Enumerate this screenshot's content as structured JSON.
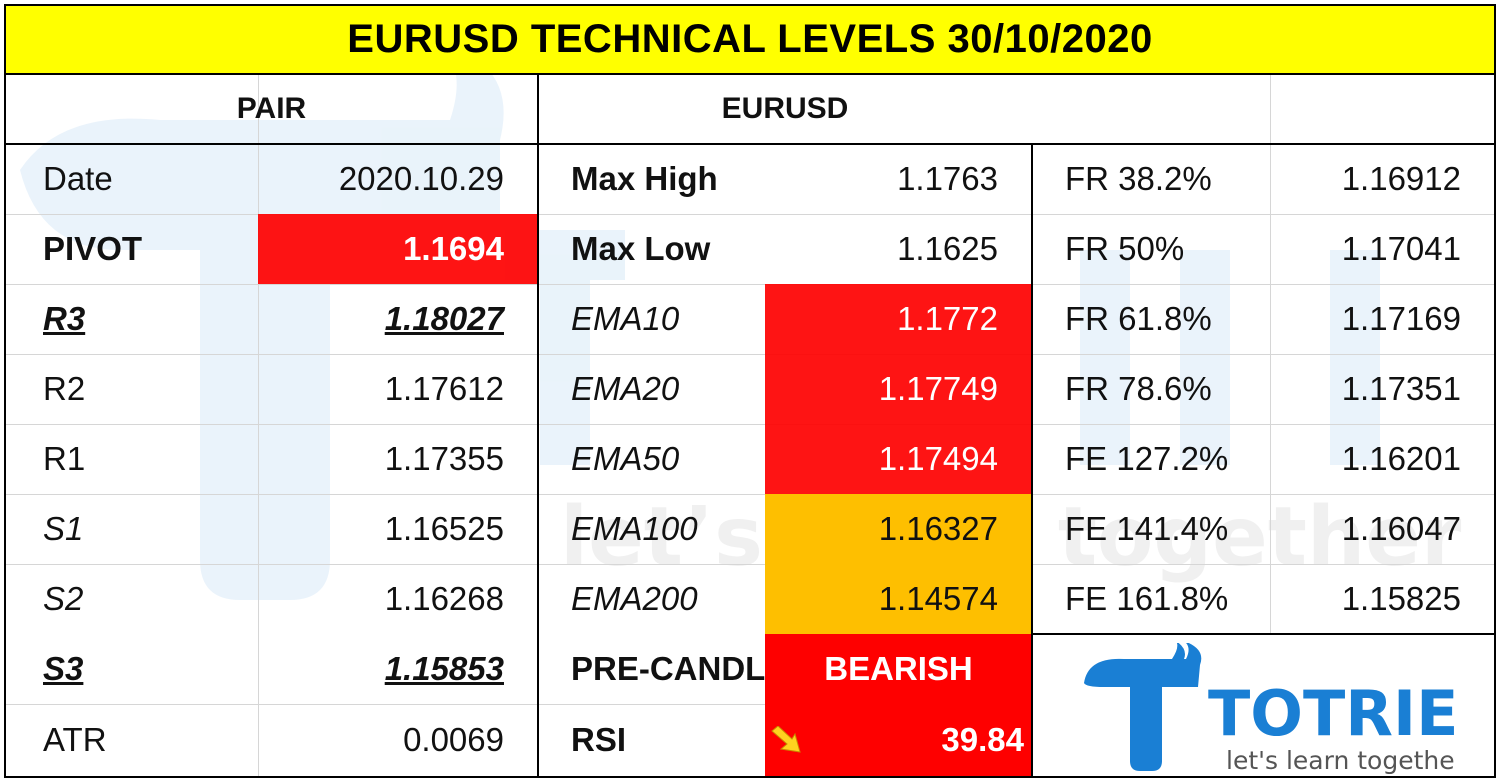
{
  "title": "EURUSD TECHNICAL LEVELS 30/10/2020",
  "header": {
    "pair_label": "PAIR",
    "pair_value": "EURUSD"
  },
  "pivots": [
    {
      "label": "Date",
      "value": "2020.10.29"
    },
    {
      "label": "PIVOT",
      "value": "1.1694"
    },
    {
      "label": "R3",
      "value": "1.18027"
    },
    {
      "label": "R2",
      "value": "1.17612"
    },
    {
      "label": "R1",
      "value": "1.17355"
    },
    {
      "label": "S1",
      "value": "1.16525"
    },
    {
      "label": "S2",
      "value": "1.16268"
    },
    {
      "label": "S3",
      "value": "1.15853"
    },
    {
      "label": "ATR",
      "value": "0.0069"
    }
  ],
  "indicators": [
    {
      "label": "Max High",
      "value": "1.1763"
    },
    {
      "label": "Max Low",
      "value": "1.1625"
    },
    {
      "label": "EMA10",
      "value": "1.1772"
    },
    {
      "label": "EMA20",
      "value": "1.17749"
    },
    {
      "label": "EMA50",
      "value": "1.17494"
    },
    {
      "label": "EMA100",
      "value": "1.16327"
    },
    {
      "label": "EMA200",
      "value": "1.14574"
    },
    {
      "label": "PRE-CANDLE",
      "value": "BEARISH"
    },
    {
      "label": "RSI",
      "value": "39.84"
    }
  ],
  "fibonacci": [
    {
      "label": "FR 38.2%",
      "value": "1.16912"
    },
    {
      "label": "FR 50%",
      "value": "1.17041"
    },
    {
      "label": "FR 61.8%",
      "value": "1.17169"
    },
    {
      "label": "FR 78.6%",
      "value": "1.17351"
    },
    {
      "label": "FE 127.2%",
      "value": "1.16201"
    },
    {
      "label": "FE 141.4%",
      "value": "1.16047"
    },
    {
      "label": "FE 161.8%",
      "value": "1.15825"
    }
  ],
  "brand": {
    "name": "TOTRIEU",
    "slogan": "let's learn together"
  },
  "icons": {
    "rsi_trend": "arrow-down-right-icon"
  },
  "colors": {
    "title_bg": "#ffff00",
    "bearish_red": "#fe0000",
    "caution_orange": "#febf00",
    "brand_blue": "#1a7fd4"
  }
}
